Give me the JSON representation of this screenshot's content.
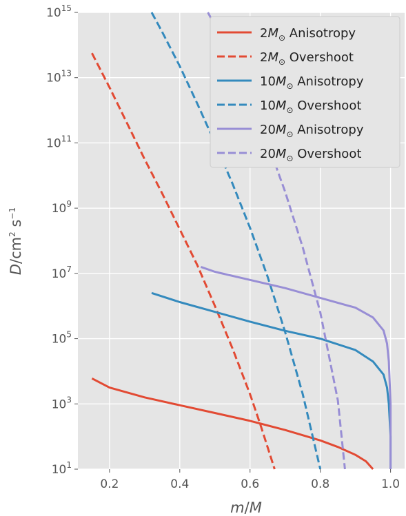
{
  "chart_data": {
    "type": "line",
    "xlabel_parts": [
      "m",
      "/",
      "M"
    ],
    "ylabel_parts": [
      "D",
      "/cm",
      "2",
      " s",
      "−1"
    ],
    "xlim": [
      0.11,
      1.04
    ],
    "ylim_log10": [
      1,
      15
    ],
    "x_ticks": [
      0.2,
      0.4,
      0.6,
      0.8,
      1.0
    ],
    "x_tick_labels": [
      "0.2",
      "0.4",
      "0.6",
      "0.8",
      "1.0"
    ],
    "y_ticks_log10": [
      1,
      3,
      5,
      7,
      9,
      11,
      13,
      15
    ],
    "y_tick_labels": [
      {
        "base": "10",
        "exp": "1"
      },
      {
        "base": "10",
        "exp": "3"
      },
      {
        "base": "10",
        "exp": "5"
      },
      {
        "base": "10",
        "exp": "7"
      },
      {
        "base": "10",
        "exp": "9"
      },
      {
        "base": "10",
        "exp": "11"
      },
      {
        "base": "10",
        "exp": "13"
      },
      {
        "base": "10",
        "exp": "15"
      }
    ],
    "grid": true,
    "legend_position": "top-right",
    "series": [
      {
        "name_parts": [
          "2",
          "M",
          "⊙",
          " Anisotropy"
        ],
        "color": "#E24A33",
        "style": "solid",
        "x": [
          0.15,
          0.2,
          0.3,
          0.4,
          0.5,
          0.6,
          0.7,
          0.8,
          0.85,
          0.9,
          0.93,
          0.95
        ],
        "log10_y": [
          3.78,
          3.5,
          3.2,
          2.96,
          2.72,
          2.48,
          2.2,
          1.88,
          1.68,
          1.44,
          1.24,
          1.0
        ]
      },
      {
        "name_parts": [
          "2",
          "M",
          "⊙",
          " Overshoot"
        ],
        "color": "#E24A33",
        "style": "dashed",
        "x": [
          0.15,
          0.2,
          0.25,
          0.3,
          0.35,
          0.4,
          0.45,
          0.5,
          0.55,
          0.6,
          0.63,
          0.67
        ],
        "log10_y": [
          13.75,
          12.7,
          11.6,
          10.5,
          9.45,
          8.35,
          7.25,
          6.0,
          4.7,
          3.3,
          2.35,
          1.0
        ]
      },
      {
        "name_parts": [
          "10",
          "M",
          "⊙",
          " Anisotropy"
        ],
        "color": "#348ABD",
        "style": "solid",
        "x": [
          0.32,
          0.4,
          0.5,
          0.6,
          0.7,
          0.8,
          0.9,
          0.95,
          0.98,
          0.99,
          0.995,
          1.0,
          1.0
        ],
        "log10_y": [
          6.4,
          6.12,
          5.82,
          5.52,
          5.24,
          5.0,
          4.65,
          4.3,
          3.9,
          3.5,
          3.0,
          2.0,
          1.0
        ]
      },
      {
        "name_parts": [
          "10",
          "M",
          "⊙",
          " Overshoot"
        ],
        "color": "#348ABD",
        "style": "dashed",
        "x": [
          0.32,
          0.35,
          0.4,
          0.45,
          0.5,
          0.55,
          0.6,
          0.65,
          0.7,
          0.75,
          0.8
        ],
        "log10_y": [
          15.0,
          14.4,
          13.35,
          12.2,
          11.0,
          9.75,
          8.4,
          6.9,
          5.2,
          3.3,
          1.0
        ]
      },
      {
        "name_parts": [
          "20",
          "M",
          "⊙",
          " Anisotropy"
        ],
        "color": "#988ED5",
        "style": "solid",
        "x": [
          0.46,
          0.5,
          0.6,
          0.7,
          0.8,
          0.9,
          0.95,
          0.98,
          0.99,
          0.995,
          1.0,
          1.0
        ],
        "log10_y": [
          7.2,
          7.05,
          6.8,
          6.55,
          6.25,
          5.95,
          5.65,
          5.25,
          4.85,
          4.3,
          3.0,
          1.0
        ]
      },
      {
        "name_parts": [
          "20",
          "M",
          "⊙",
          " Overshoot"
        ],
        "color": "#988ED5",
        "style": "dashed",
        "x": [
          0.48,
          0.5,
          0.55,
          0.6,
          0.65,
          0.7,
          0.75,
          0.8,
          0.85,
          0.87
        ],
        "log10_y": [
          15.0,
          14.6,
          13.5,
          12.3,
          11.0,
          9.5,
          7.8,
          5.8,
          3.1,
          1.0
        ]
      }
    ]
  }
}
